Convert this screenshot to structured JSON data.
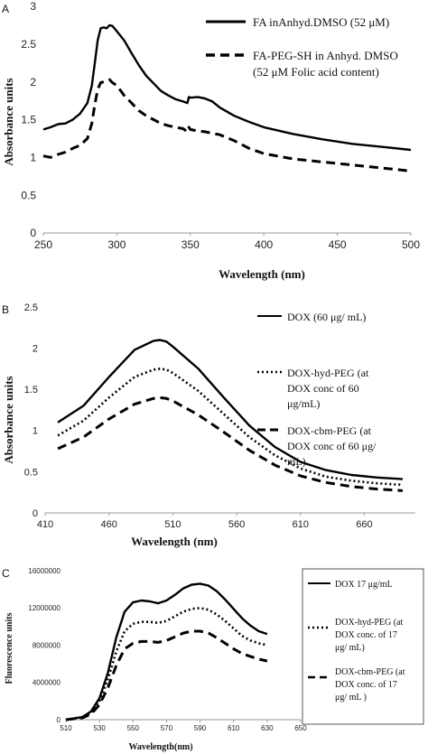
{
  "figure": {
    "panels": [
      "A",
      "B",
      "C"
    ]
  },
  "chart_data": [
    {
      "type": "line",
      "panel": "A",
      "xlabel": "Wavelength (nm)",
      "ylabel": "Absorbance units",
      "xlim": [
        250,
        500
      ],
      "ylim": [
        0,
        3
      ],
      "xticks": [
        "250",
        "300",
        "350",
        "400",
        "450",
        "500"
      ],
      "yticks": [
        "0",
        "0.5",
        "1",
        "1.5",
        "2",
        "2.5",
        "3"
      ],
      "xtick_values": [
        250,
        300,
        350,
        400,
        450,
        500
      ],
      "ytick_values": [
        0,
        0.5,
        1,
        1.5,
        2,
        2.5,
        3
      ],
      "legend_position": "top-right",
      "series": [
        {
          "name": "FA inAnhyd.DMSO  (52 μM)",
          "legend_lines": [
            "FA inAnhyd.DMSO  (52 μM)"
          ],
          "style": "solid",
          "x": [
            250,
            255,
            260,
            265,
            270,
            275,
            280,
            283,
            285,
            287,
            289,
            291,
            293,
            295,
            297,
            300,
            305,
            310,
            315,
            320,
            325,
            330,
            335,
            340,
            345,
            348,
            349,
            350,
            355,
            360,
            365,
            370,
            380,
            390,
            400,
            420,
            440,
            460,
            480,
            500
          ],
          "values": [
            1.37,
            1.4,
            1.44,
            1.45,
            1.5,
            1.58,
            1.72,
            1.95,
            2.25,
            2.55,
            2.71,
            2.72,
            2.71,
            2.75,
            2.74,
            2.67,
            2.55,
            2.38,
            2.22,
            2.08,
            1.98,
            1.88,
            1.82,
            1.77,
            1.74,
            1.72,
            1.8,
            1.79,
            1.8,
            1.78,
            1.74,
            1.66,
            1.55,
            1.47,
            1.4,
            1.31,
            1.24,
            1.18,
            1.14,
            1.1
          ]
        },
        {
          "name": "FA-PEG-SH in Anhyd. DMSO (52 μM Folic acid content)",
          "legend_lines": [
            "FA-PEG-SH in Anhyd. DMSO",
            "(52 μM Folic acid content)"
          ],
          "style": "dashed",
          "x": [
            250,
            255,
            260,
            265,
            270,
            275,
            280,
            283,
            285,
            287,
            289,
            291,
            293,
            295,
            297,
            300,
            305,
            310,
            315,
            320,
            325,
            330,
            335,
            340,
            345,
            348,
            349,
            350,
            355,
            360,
            365,
            370,
            380,
            390,
            400,
            420,
            440,
            460,
            480,
            500
          ],
          "values": [
            1.02,
            1.0,
            1.04,
            1.07,
            1.12,
            1.16,
            1.25,
            1.45,
            1.7,
            1.9,
            1.99,
            2.0,
            2.01,
            2.03,
            1.99,
            1.95,
            1.82,
            1.72,
            1.62,
            1.55,
            1.5,
            1.45,
            1.42,
            1.4,
            1.38,
            1.34,
            1.4,
            1.37,
            1.35,
            1.34,
            1.32,
            1.3,
            1.22,
            1.12,
            1.05,
            0.98,
            0.94,
            0.9,
            0.86,
            0.82
          ]
        }
      ]
    },
    {
      "type": "line",
      "panel": "B",
      "xlabel": "Wavelength (nm)",
      "ylabel": "Absorbance units",
      "xlim": [
        410,
        700
      ],
      "ylim": [
        0,
        2.5
      ],
      "xticks": [
        "410",
        "460",
        "510",
        "560",
        "610",
        "660"
      ],
      "yticks": [
        "0",
        "0.5",
        "1",
        "1.5",
        "2",
        "2.5"
      ],
      "xtick_values": [
        410,
        460,
        510,
        560,
        610,
        660
      ],
      "ytick_values": [
        0,
        0.5,
        1,
        1.5,
        2,
        2.5
      ],
      "legend_position": "right",
      "series": [
        {
          "name": "DOX (60 μg/ mL)",
          "legend_lines": [
            "DOX (60 μg/ mL)"
          ],
          "style": "solid",
          "x": [
            420,
            440,
            460,
            480,
            495,
            500,
            505,
            510,
            530,
            550,
            570,
            590,
            610,
            630,
            650,
            670,
            690
          ],
          "values": [
            1.1,
            1.3,
            1.65,
            1.98,
            2.09,
            2.1,
            2.08,
            2.02,
            1.75,
            1.4,
            1.06,
            0.8,
            0.62,
            0.52,
            0.46,
            0.43,
            0.41
          ]
        },
        {
          "name": "DOX-hyd-PEG (at DOX conc of 60 μg/mL)",
          "legend_lines": [
            "DOX-hyd-PEG (at",
            "DOX conc of 60",
            "μg/mL)"
          ],
          "style": "dotted",
          "x": [
            420,
            440,
            460,
            480,
            495,
            500,
            505,
            510,
            530,
            550,
            570,
            590,
            610,
            630,
            650,
            670,
            690
          ],
          "values": [
            0.94,
            1.12,
            1.4,
            1.65,
            1.74,
            1.75,
            1.74,
            1.7,
            1.48,
            1.2,
            0.92,
            0.7,
            0.54,
            0.44,
            0.39,
            0.36,
            0.34
          ]
        },
        {
          "name": "DOX-cbm-PEG (at DOX conc of 60 μg/ mL)",
          "legend_lines": [
            "DOX-cbm-PEG (at",
            "DOX conc of 60 μg/",
            "mL)"
          ],
          "style": "dashed",
          "x": [
            420,
            440,
            460,
            480,
            495,
            500,
            505,
            510,
            530,
            550,
            570,
            590,
            610,
            630,
            650,
            670,
            690
          ],
          "values": [
            0.78,
            0.92,
            1.14,
            1.32,
            1.39,
            1.4,
            1.39,
            1.36,
            1.19,
            0.98,
            0.76,
            0.58,
            0.45,
            0.37,
            0.32,
            0.29,
            0.27
          ]
        }
      ]
    },
    {
      "type": "line",
      "panel": "C",
      "xlabel": "Wavelength(nm)",
      "ylabel": "Fluorescence units",
      "xlim": [
        510,
        650
      ],
      "ylim": [
        0,
        16000000
      ],
      "xticks": [
        "510",
        "530",
        "550",
        "570",
        "590",
        "610",
        "630",
        "650"
      ],
      "yticks": [
        "0",
        "4000000",
        "8000000",
        "12000000",
        "16000000"
      ],
      "xtick_values": [
        510,
        530,
        550,
        570,
        590,
        610,
        630,
        650
      ],
      "ytick_values": [
        0,
        4000000,
        8000000,
        12000000,
        16000000
      ],
      "legend_position": "right",
      "series": [
        {
          "name": "DOX 17 μg/mL",
          "legend_lines": [
            "DOX 17 μg/mL"
          ],
          "style": "solid",
          "x": [
            510,
            520,
            525,
            530,
            535,
            540,
            545,
            550,
            555,
            560,
            565,
            570,
            575,
            580,
            585,
            590,
            595,
            600,
            605,
            610,
            615,
            620,
            625,
            630
          ],
          "values": [
            0,
            300000,
            900000,
            2300000,
            5000000,
            8800000,
            11600000,
            12600000,
            12800000,
            12700000,
            12500000,
            12800000,
            13400000,
            14100000,
            14500000,
            14600000,
            14400000,
            13800000,
            12900000,
            11900000,
            10900000,
            10100000,
            9500000,
            9200000
          ]
        },
        {
          "name": "DOX-hyd-PEG (at DOX conc. of 17 μg/ mL)",
          "legend_lines": [
            "DOX-hyd-PEG (at",
            "DOX conc. of 17",
            "μg/ mL)"
          ],
          "style": "dotted",
          "x": [
            510,
            520,
            525,
            530,
            535,
            540,
            545,
            550,
            555,
            560,
            565,
            570,
            575,
            580,
            585,
            590,
            595,
            600,
            605,
            610,
            615,
            620,
            625,
            630
          ],
          "values": [
            0,
            250000,
            750000,
            2000000,
            4300000,
            7300000,
            9500000,
            10300000,
            10500000,
            10500000,
            10400000,
            10600000,
            11100000,
            11600000,
            11900000,
            12000000,
            11800000,
            11300000,
            10600000,
            9800000,
            9000000,
            8500000,
            8200000,
            8000000
          ]
        },
        {
          "name": "DOX-cbm-PEG (at DOX conc. of 17 μg/ mL )",
          "legend_lines": [
            "DOX-cbm-PEG (at",
            "DOX conc. of 17",
            "μg/ mL )"
          ],
          "style": "dashed",
          "x": [
            510,
            520,
            525,
            530,
            535,
            540,
            545,
            550,
            555,
            560,
            565,
            570,
            575,
            580,
            585,
            590,
            595,
            600,
            605,
            610,
            615,
            620,
            625,
            630
          ],
          "values": [
            0,
            200000,
            600000,
            1600000,
            3400000,
            5800000,
            7600000,
            8200000,
            8400000,
            8400000,
            8300000,
            8500000,
            8900000,
            9300000,
            9500000,
            9500000,
            9300000,
            8800000,
            8200000,
            7600000,
            7100000,
            6800000,
            6500000,
            6300000
          ]
        }
      ]
    }
  ]
}
